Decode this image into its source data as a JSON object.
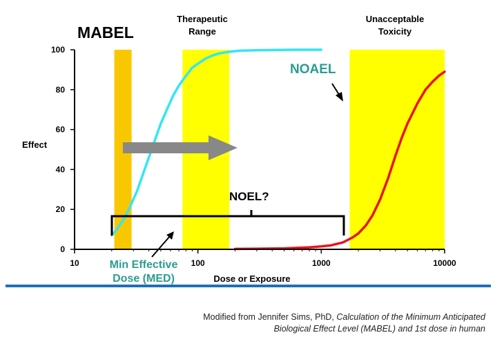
{
  "chart_data": {
    "type": "line",
    "x_scale": "log",
    "xlim": [
      10,
      10000
    ],
    "ylim": [
      0,
      100
    ],
    "xticks": [
      {
        "value": 10,
        "label": "10"
      },
      {
        "value": 100,
        "label": "100"
      },
      {
        "value": 1000,
        "label": "1000"
      },
      {
        "value": 10000,
        "label": "10000"
      }
    ],
    "yticks": [
      {
        "value": 0,
        "label": "0"
      },
      {
        "value": 20,
        "label": "20"
      },
      {
        "value": 40,
        "label": "40"
      },
      {
        "value": 60,
        "label": "60"
      },
      {
        "value": 80,
        "label": "80"
      },
      {
        "value": 100,
        "label": "100"
      }
    ],
    "xlabel": "Dose or Exposure",
    "ylabel": "Effect",
    "series": [
      {
        "color": "#33e6f2",
        "x": [
          20,
          22,
          25,
          28,
          32,
          36,
          40,
          45,
          50,
          56,
          63,
          70,
          80,
          90,
          100,
          115,
          130,
          150,
          180,
          220,
          280,
          350,
          450,
          600,
          800,
          1000
        ],
        "y": [
          7,
          10,
          15,
          21,
          29,
          38,
          46,
          55,
          63,
          70,
          77,
          82,
          87,
          91,
          93,
          95.5,
          97,
          98.2,
          99,
          99.5,
          99.7,
          99.8,
          99.9,
          100,
          100,
          100
        ]
      },
      {
        "color": "#e8141e",
        "x": [
          200,
          300,
          500,
          800,
          1000,
          1200,
          1500,
          1800,
          2000,
          2300,
          2600,
          3000,
          3500,
          4000,
          4500,
          5000,
          6000,
          7000,
          8000,
          9000,
          10000
        ],
        "y": [
          0.2,
          0.3,
          0.5,
          1,
          1.5,
          2,
          3.5,
          6,
          8,
          12,
          17,
          25,
          36,
          47,
          56,
          63,
          73,
          80,
          84,
          87,
          89
        ]
      }
    ],
    "bands": [
      {
        "label": "MABEL",
        "x_range": [
          21,
          29
        ],
        "color": "#f9c700"
      },
      {
        "label": "Therapeutic Range",
        "x_range": [
          75,
          180
        ],
        "color": "#ffff00"
      },
      {
        "label": "Unacceptable Toxicity",
        "x_range": [
          1700,
          10000
        ],
        "color": "#ffff00"
      }
    ],
    "annotations": {
      "mabel": "MABEL",
      "therapeutic_line1": "Therapeutic",
      "therapeutic_line2": "Range",
      "toxicity_line1": "Unacceptable",
      "toxicity_line2": "Toxicity",
      "noael": "NOAEL",
      "noel": "NOEL?",
      "med_line1": "Min Effective",
      "med_line2": "Dose (MED)"
    },
    "colors": {
      "noael_text": "#2a9d8f",
      "med_text": "#2a9d8f",
      "arrow": "#888888",
      "rule": "#1f6fb7"
    },
    "grid": false
  },
  "credit": {
    "line1_prefix": "Modified from Jennifer Sims, PhD, ",
    "line1_italic": "Calculation of the Minimum Anticipated",
    "line2_italic": "Biological Effect Level (MABEL) and 1st dose in human"
  }
}
